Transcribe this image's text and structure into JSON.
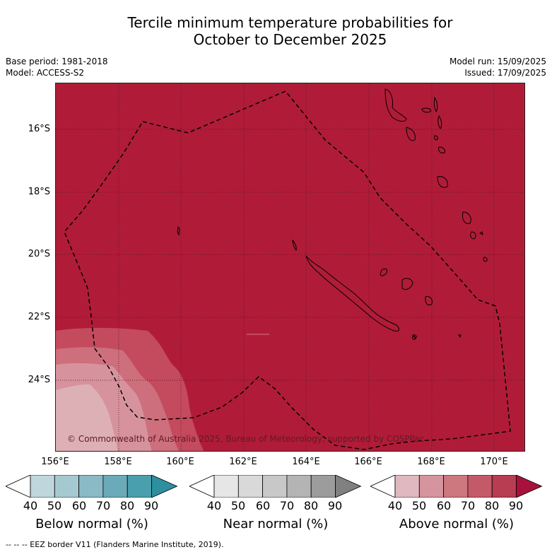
{
  "title_line1": "Tercile minimum temperature probabilities for",
  "title_line2": "October to December 2025",
  "base_period": "Base period: 1981-2018",
  "model": "Model: ACCESS-S2",
  "model_run": "Model run: 15/09/2025",
  "issued": "Issued: 17/09/2025",
  "map": {
    "latitude_labels": [
      "16°S",
      "18°S",
      "20°S",
      "22°S",
      "24°S"
    ],
    "longitude_labels": [
      "156°E",
      "158°E",
      "160°E",
      "162°E",
      "164°E",
      "166°E",
      "168°E",
      "170°E"
    ],
    "credit": "© Commonwealth of Australia 2025, Bureau of Meteorology, supported by COSPPac",
    "background_color": "#b01c38",
    "eez_color": "#000000"
  },
  "colorbars": [
    {
      "label": "Below normal (%)",
      "ticks": [
        "40",
        "50",
        "60",
        "70",
        "80",
        "90"
      ],
      "colors": [
        "#ffffff",
        "#bfd6dd",
        "#a5c9d1",
        "#89bac5",
        "#6babb9",
        "#4a9fae",
        "#2e8fa0"
      ]
    },
    {
      "label": "Near normal (%)",
      "ticks": [
        "40",
        "50",
        "60",
        "70",
        "80",
        "90"
      ],
      "colors": [
        "#ffffff",
        "#e6e6e6",
        "#d9d9d9",
        "#c8c8c8",
        "#b4b4b4",
        "#9c9c9c",
        "#808080"
      ]
    },
    {
      "label": "Above normal (%)",
      "ticks": [
        "40",
        "50",
        "60",
        "70",
        "80",
        "90"
      ],
      "colors": [
        "#ffffff",
        "#e0b8bf",
        "#d6959e",
        "#cd777f",
        "#c45a68",
        "#b83c52",
        "#a8123a"
      ]
    }
  ],
  "legend_note": "--  --  -- EEZ border V11 (Flanders Marine Institute, 2019)."
}
